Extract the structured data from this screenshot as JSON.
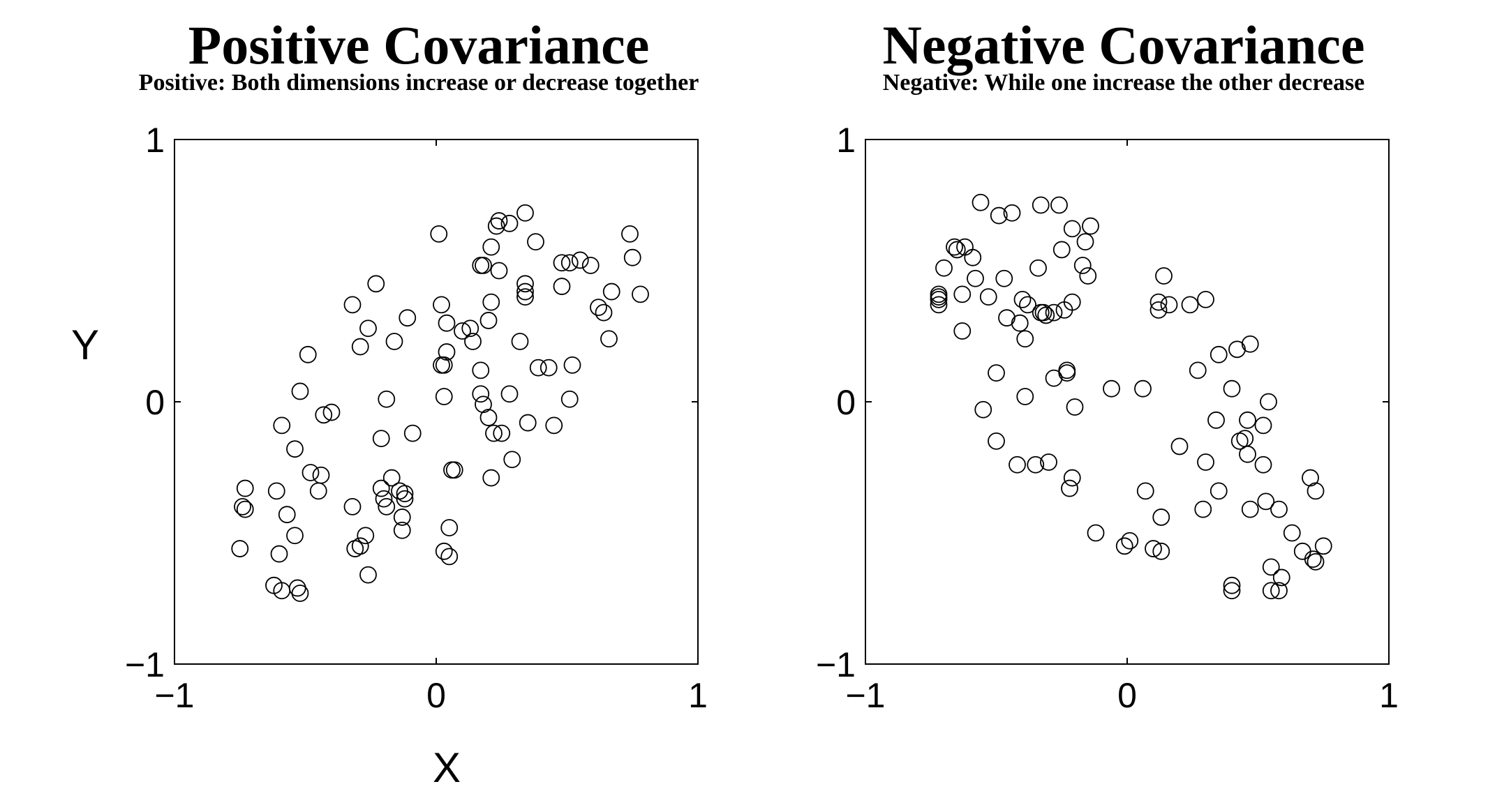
{
  "chart_data": [
    {
      "type": "scatter",
      "title": "Positive Covariance",
      "subtitle": "Positive: Both dimensions increase or decrease together",
      "xlabel": "X",
      "ylabel": "Y",
      "xlim": [
        -1,
        1
      ],
      "ylim": [
        -1,
        1
      ],
      "xticks": [
        "−1",
        "0",
        "1"
      ],
      "yticks": [
        "−1",
        "0",
        "1"
      ],
      "marker": "open-circle",
      "marker_color": "#000000",
      "points": [
        [
          -0.75,
          -0.56
        ],
        [
          -0.74,
          -0.4
        ],
        [
          -0.73,
          -0.41
        ],
        [
          -0.73,
          -0.33
        ],
        [
          -0.62,
          -0.7
        ],
        [
          -0.61,
          -0.34
        ],
        [
          -0.6,
          -0.58
        ],
        [
          -0.59,
          -0.72
        ],
        [
          -0.59,
          -0.09
        ],
        [
          -0.57,
          -0.43
        ],
        [
          -0.54,
          -0.18
        ],
        [
          -0.54,
          -0.51
        ],
        [
          -0.53,
          -0.71
        ],
        [
          -0.52,
          -0.73
        ],
        [
          -0.52,
          0.04
        ],
        [
          -0.49,
          0.18
        ],
        [
          -0.48,
          -0.27
        ],
        [
          -0.45,
          -0.34
        ],
        [
          -0.44,
          -0.28
        ],
        [
          -0.43,
          -0.05
        ],
        [
          -0.4,
          -0.04
        ],
        [
          -0.32,
          -0.4
        ],
        [
          -0.32,
          0.37
        ],
        [
          -0.31,
          -0.56
        ],
        [
          -0.29,
          -0.55
        ],
        [
          -0.29,
          0.21
        ],
        [
          -0.27,
          -0.51
        ],
        [
          -0.26,
          -0.66
        ],
        [
          -0.26,
          0.28
        ],
        [
          -0.23,
          0.45
        ],
        [
          -0.21,
          -0.14
        ],
        [
          -0.21,
          -0.33
        ],
        [
          -0.2,
          -0.37
        ],
        [
          -0.19,
          -0.4
        ],
        [
          -0.19,
          0.01
        ],
        [
          -0.17,
          -0.29
        ],
        [
          -0.16,
          0.23
        ],
        [
          -0.14,
          -0.34
        ],
        [
          -0.13,
          -0.44
        ],
        [
          -0.13,
          -0.49
        ],
        [
          -0.12,
          -0.35
        ],
        [
          -0.12,
          -0.37
        ],
        [
          -0.11,
          0.32
        ],
        [
          -0.09,
          -0.12
        ],
        [
          0.01,
          0.64
        ],
        [
          0.02,
          0.14
        ],
        [
          0.02,
          0.37
        ],
        [
          0.03,
          0.02
        ],
        [
          0.03,
          0.14
        ],
        [
          0.03,
          -0.57
        ],
        [
          0.04,
          0.19
        ],
        [
          0.04,
          0.3
        ],
        [
          0.05,
          -0.48
        ],
        [
          0.05,
          -0.59
        ],
        [
          0.06,
          -0.26
        ],
        [
          0.07,
          -0.26
        ],
        [
          0.1,
          0.27
        ],
        [
          0.13,
          0.28
        ],
        [
          0.14,
          0.23
        ],
        [
          0.17,
          0.52
        ],
        [
          0.17,
          0.12
        ],
        [
          0.17,
          0.03
        ],
        [
          0.18,
          -0.01
        ],
        [
          0.18,
          0.52
        ],
        [
          0.2,
          -0.06
        ],
        [
          0.2,
          0.31
        ],
        [
          0.21,
          0.38
        ],
        [
          0.21,
          -0.29
        ],
        [
          0.21,
          0.59
        ],
        [
          0.22,
          -0.12
        ],
        [
          0.23,
          0.67
        ],
        [
          0.24,
          0.5
        ],
        [
          0.24,
          0.69
        ],
        [
          0.25,
          -0.12
        ],
        [
          0.28,
          0.03
        ],
        [
          0.28,
          0.68
        ],
        [
          0.29,
          -0.22
        ],
        [
          0.32,
          0.23
        ],
        [
          0.34,
          0.72
        ],
        [
          0.34,
          0.45
        ],
        [
          0.34,
          0.42
        ],
        [
          0.34,
          0.4
        ],
        [
          0.35,
          -0.08
        ],
        [
          0.38,
          0.61
        ],
        [
          0.39,
          0.13
        ],
        [
          0.43,
          0.13
        ],
        [
          0.45,
          -0.09
        ],
        [
          0.48,
          0.53
        ],
        [
          0.48,
          0.44
        ],
        [
          0.51,
          0.53
        ],
        [
          0.51,
          0.01
        ],
        [
          0.52,
          0.14
        ],
        [
          0.55,
          0.54
        ],
        [
          0.59,
          0.52
        ],
        [
          0.62,
          0.36
        ],
        [
          0.64,
          0.34
        ],
        [
          0.66,
          0.24
        ],
        [
          0.67,
          0.42
        ],
        [
          0.74,
          0.64
        ],
        [
          0.75,
          0.55
        ],
        [
          0.78,
          0.41
        ]
      ]
    },
    {
      "type": "scatter",
      "title": "Negative Covariance",
      "subtitle": "Negative: While one increase the other decrease",
      "xlabel": "",
      "ylabel": "",
      "xlim": [
        -1,
        1
      ],
      "ylim": [
        -1,
        1
      ],
      "xticks": [
        "−1",
        "0",
        "1"
      ],
      "yticks": [
        "−1",
        "0",
        "1"
      ],
      "marker": "open-circle",
      "marker_color": "#000000",
      "points": [
        [
          -0.72,
          0.41
        ],
        [
          -0.72,
          0.4
        ],
        [
          -0.72,
          0.39
        ],
        [
          -0.72,
          0.37
        ],
        [
          -0.7,
          0.51
        ],
        [
          -0.66,
          0.59
        ],
        [
          -0.65,
          0.58
        ],
        [
          -0.63,
          0.41
        ],
        [
          -0.63,
          0.27
        ],
        [
          -0.62,
          0.59
        ],
        [
          -0.59,
          0.55
        ],
        [
          -0.58,
          0.47
        ],
        [
          -0.56,
          0.76
        ],
        [
          -0.55,
          -0.03
        ],
        [
          -0.53,
          0.4
        ],
        [
          -0.5,
          0.11
        ],
        [
          -0.5,
          -0.15
        ],
        [
          -0.49,
          0.71
        ],
        [
          -0.47,
          0.47
        ],
        [
          -0.46,
          0.32
        ],
        [
          -0.44,
          0.72
        ],
        [
          -0.42,
          -0.24
        ],
        [
          -0.41,
          0.3
        ],
        [
          -0.4,
          0.39
        ],
        [
          -0.39,
          0.24
        ],
        [
          -0.39,
          0.02
        ],
        [
          -0.38,
          0.37
        ],
        [
          -0.35,
          -0.24
        ],
        [
          -0.34,
          0.51
        ],
        [
          -0.33,
          0.34
        ],
        [
          -0.33,
          0.75
        ],
        [
          -0.32,
          0.34
        ],
        [
          -0.31,
          0.33
        ],
        [
          -0.3,
          -0.23
        ],
        [
          -0.28,
          0.34
        ],
        [
          -0.28,
          0.09
        ],
        [
          -0.26,
          0.75
        ],
        [
          -0.25,
          0.58
        ],
        [
          -0.24,
          0.35
        ],
        [
          -0.23,
          0.12
        ],
        [
          -0.23,
          0.11
        ],
        [
          -0.22,
          -0.33
        ],
        [
          -0.21,
          0.66
        ],
        [
          -0.21,
          0.38
        ],
        [
          -0.21,
          -0.29
        ],
        [
          -0.2,
          -0.02
        ],
        [
          -0.17,
          0.52
        ],
        [
          -0.16,
          0.61
        ],
        [
          -0.15,
          0.48
        ],
        [
          -0.14,
          0.67
        ],
        [
          -0.12,
          -0.5
        ],
        [
          -0.06,
          0.05
        ],
        [
          -0.01,
          -0.55
        ],
        [
          0.01,
          -0.53
        ],
        [
          0.06,
          0.05
        ],
        [
          0.07,
          -0.34
        ],
        [
          0.1,
          -0.56
        ],
        [
          0.12,
          0.35
        ],
        [
          0.12,
          0.38
        ],
        [
          0.13,
          -0.57
        ],
        [
          0.13,
          -0.44
        ],
        [
          0.14,
          0.48
        ],
        [
          0.16,
          0.37
        ],
        [
          0.2,
          -0.17
        ],
        [
          0.24,
          0.37
        ],
        [
          0.27,
          0.12
        ],
        [
          0.29,
          -0.41
        ],
        [
          0.3,
          0.39
        ],
        [
          0.3,
          -0.23
        ],
        [
          0.34,
          -0.07
        ],
        [
          0.35,
          -0.34
        ],
        [
          0.35,
          0.18
        ],
        [
          0.4,
          0.05
        ],
        [
          0.4,
          -0.7
        ],
        [
          0.4,
          -0.72
        ],
        [
          0.42,
          0.2
        ],
        [
          0.43,
          -0.15
        ],
        [
          0.45,
          -0.14
        ],
        [
          0.46,
          -0.07
        ],
        [
          0.46,
          -0.2
        ],
        [
          0.47,
          0.22
        ],
        [
          0.47,
          -0.41
        ],
        [
          0.52,
          -0.09
        ],
        [
          0.52,
          -0.24
        ],
        [
          0.53,
          -0.38
        ],
        [
          0.54,
          0.0
        ],
        [
          0.55,
          -0.63
        ],
        [
          0.55,
          -0.72
        ],
        [
          0.58,
          -0.72
        ],
        [
          0.58,
          -0.41
        ],
        [
          0.59,
          -0.67
        ],
        [
          0.63,
          -0.5
        ],
        [
          0.67,
          -0.57
        ],
        [
          0.7,
          -0.29
        ],
        [
          0.71,
          -0.6
        ],
        [
          0.72,
          -0.61
        ],
        [
          0.72,
          -0.34
        ],
        [
          0.75,
          -0.55
        ]
      ]
    }
  ],
  "stray_mark": "?"
}
